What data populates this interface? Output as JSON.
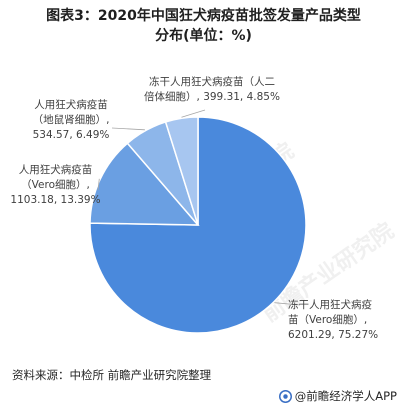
{
  "title": {
    "line1": "图表3：2020年中国狂犬病疫苗批签发量产品类型",
    "line2": "分布(单位：%)"
  },
  "chart_data": {
    "type": "pie",
    "unit": "%",
    "slices": [
      {
        "name": "冻干人用狂犬病疫苗（Vero细胞）",
        "value": 6201.29,
        "percent": 75.27,
        "color": "#4a89dc",
        "label_lines": [
          "冻干人用狂犬病疫",
          "苗（Vero细胞）,",
          "6201.29, 75.27%"
        ]
      },
      {
        "name": "人用狂犬病疫苗（Vero细胞）",
        "value": 1103.18,
        "percent": 13.39,
        "color": "#6a9fe2",
        "label_lines": [
          "人用狂犬病疫苗",
          "（Vero细胞）,",
          "1103.18, 13.39%"
        ]
      },
      {
        "name": "人用狂犬病疫苗（地鼠肾细胞）",
        "value": 534.57,
        "percent": 6.49,
        "color": "#8db6ea",
        "label_lines": [
          "人用狂犬病疫苗",
          "（地鼠肾细胞）,",
          "534.57, 6.49%"
        ]
      },
      {
        "name": "冻干人用狂犬病疫苗（人二倍体细胞）",
        "value": 399.31,
        "percent": 4.85,
        "color": "#a7c6f0",
        "label_lines": [
          "冻干人用狂犬病疫苗（人二",
          "倍体细胞）, 399.31, 4.85%"
        ]
      }
    ]
  },
  "source": "资料来源：中检所 前瞻产业研究院整理",
  "brand": "@前瞻经济学人APP",
  "watermark": [
    "前瞻产业研究院",
    "前瞻产业研究院"
  ]
}
